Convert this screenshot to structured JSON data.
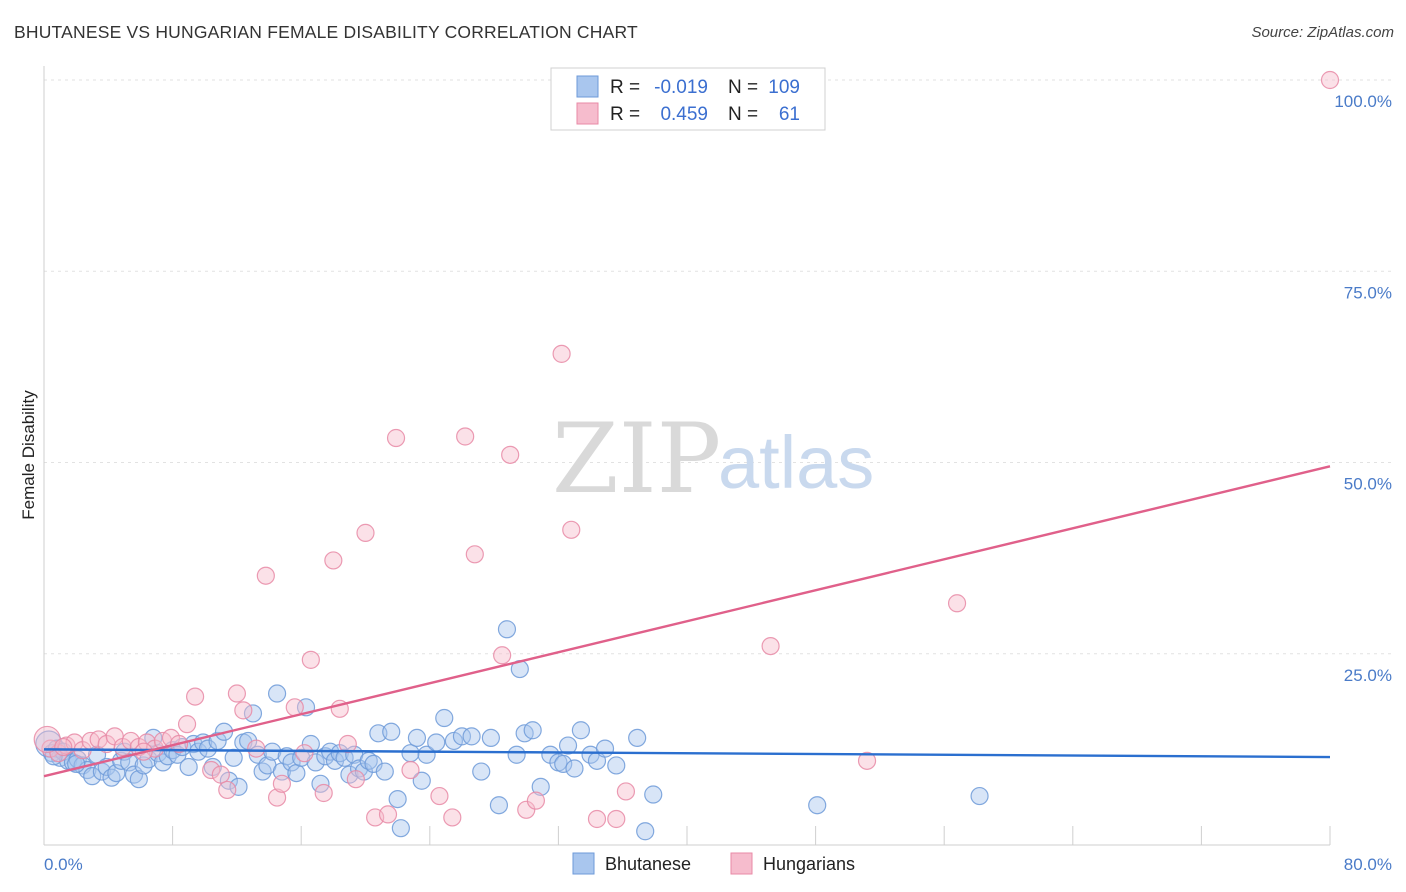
{
  "header": {
    "title": "BHUTANESE VS HUNGARIAN FEMALE DISABILITY CORRELATION CHART",
    "source": "Source: ZipAtlas.com"
  },
  "watermark": {
    "zip": "ZIP",
    "atlas": "atlas"
  },
  "legend": {
    "rows": [
      {
        "r_label": "R =",
        "r_value": "-0.019",
        "n_label": "N =",
        "n_value": "109",
        "color": "#a9c6ee",
        "stroke": "#6d9ad8"
      },
      {
        "r_label": "R =",
        "r_value": "0.459",
        "n_label": "N =",
        "n_value": "61",
        "color": "#f6bccd",
        "stroke": "#e88aa6"
      }
    ]
  },
  "bottom_legend": [
    {
      "label": "Bhutanese",
      "color": "#a9c6ee",
      "stroke": "#6d9ad8"
    },
    {
      "label": "Hungarians",
      "color": "#f6bccd",
      "stroke": "#e88aa6"
    }
  ],
  "chart_data": {
    "type": "scatter",
    "title": "BHUTANESE VS HUNGARIAN FEMALE DISABILITY CORRELATION CHART",
    "xlabel": "",
    "ylabel": "Female Disability",
    "xlim": [
      0,
      80
    ],
    "ylim": [
      0,
      100
    ],
    "x_tick_labels": [
      "0.0%",
      "80.0%"
    ],
    "y_tick_labels": [
      {
        "value": 25,
        "label": "25.0%"
      },
      {
        "value": 50,
        "label": "50.0%"
      },
      {
        "value": 75,
        "label": "75.0%"
      },
      {
        "value": 100,
        "label": "100.0%"
      }
    ],
    "series": [
      {
        "name": "Bhutanese",
        "color": "#a9c6ee",
        "line_color": "#2b6fcf",
        "trend": {
          "x": [
            0,
            80
          ],
          "y": [
            12.5,
            11.5
          ]
        },
        "points": [
          [
            0.3,
            13.2
          ],
          [
            0.5,
            12.0
          ],
          [
            0.8,
            12.6
          ],
          [
            1.0,
            11.4
          ],
          [
            1.2,
            12.2
          ],
          [
            1.5,
            11.0
          ],
          [
            1.8,
            10.8
          ],
          [
            2.1,
            11.2
          ],
          [
            2.4,
            10.4
          ],
          [
            2.7,
            9.8
          ],
          [
            3.0,
            9.0
          ],
          [
            3.3,
            11.8
          ],
          [
            3.6,
            9.6
          ],
          [
            3.9,
            10.2
          ],
          [
            4.2,
            8.8
          ],
          [
            4.5,
            9.4
          ],
          [
            4.8,
            11.0
          ],
          [
            5.0,
            12.2
          ],
          [
            5.3,
            10.8
          ],
          [
            5.6,
            9.2
          ],
          [
            5.9,
            8.6
          ],
          [
            6.2,
            10.4
          ],
          [
            6.5,
            11.2
          ],
          [
            6.8,
            14.0
          ],
          [
            7.1,
            12.0
          ],
          [
            7.4,
            10.8
          ],
          [
            7.7,
            11.6
          ],
          [
            8.0,
            12.4
          ],
          [
            8.3,
            11.8
          ],
          [
            8.6,
            12.8
          ],
          [
            9.0,
            10.2
          ],
          [
            9.3,
            13.2
          ],
          [
            9.6,
            12.2
          ],
          [
            9.9,
            13.4
          ],
          [
            10.2,
            12.6
          ],
          [
            10.5,
            10.2
          ],
          [
            10.8,
            13.6
          ],
          [
            11.2,
            14.8
          ],
          [
            11.5,
            8.4
          ],
          [
            11.8,
            11.4
          ],
          [
            12.1,
            7.6
          ],
          [
            12.4,
            13.4
          ],
          [
            12.7,
            13.6
          ],
          [
            13.0,
            17.2
          ],
          [
            13.3,
            11.8
          ],
          [
            13.6,
            9.6
          ],
          [
            13.9,
            10.4
          ],
          [
            14.2,
            12.2
          ],
          [
            14.5,
            19.8
          ],
          [
            14.8,
            9.6
          ],
          [
            15.1,
            11.6
          ],
          [
            15.4,
            10.8
          ],
          [
            15.7,
            9.4
          ],
          [
            16.0,
            11.4
          ],
          [
            16.3,
            18.0
          ],
          [
            16.6,
            13.2
          ],
          [
            16.9,
            10.8
          ],
          [
            17.2,
            8.0
          ],
          [
            17.5,
            11.6
          ],
          [
            17.8,
            12.2
          ],
          [
            18.1,
            11.0
          ],
          [
            18.4,
            12.0
          ],
          [
            18.7,
            11.4
          ],
          [
            19.0,
            9.2
          ],
          [
            19.3,
            11.8
          ],
          [
            19.6,
            10.0
          ],
          [
            19.9,
            9.6
          ],
          [
            20.2,
            11.0
          ],
          [
            20.5,
            10.6
          ],
          [
            20.8,
            14.6
          ],
          [
            21.2,
            9.6
          ],
          [
            21.6,
            14.8
          ],
          [
            22.0,
            6.0
          ],
          [
            22.2,
            2.2
          ],
          [
            22.8,
            12.0
          ],
          [
            23.2,
            14.0
          ],
          [
            23.5,
            8.4
          ],
          [
            23.8,
            11.8
          ],
          [
            24.4,
            13.4
          ],
          [
            24.9,
            16.6
          ],
          [
            25.5,
            13.6
          ],
          [
            26.0,
            14.2
          ],
          [
            26.6,
            14.2
          ],
          [
            27.2,
            9.6
          ],
          [
            27.8,
            14.0
          ],
          [
            28.3,
            5.2
          ],
          [
            28.8,
            28.2
          ],
          [
            29.4,
            11.8
          ],
          [
            29.6,
            23.0
          ],
          [
            29.9,
            14.6
          ],
          [
            30.4,
            15.0
          ],
          [
            30.9,
            7.6
          ],
          [
            31.5,
            11.8
          ],
          [
            32.0,
            10.8
          ],
          [
            32.3,
            10.6
          ],
          [
            32.6,
            13.0
          ],
          [
            33.0,
            10.0
          ],
          [
            33.4,
            15.0
          ],
          [
            34.0,
            11.8
          ],
          [
            34.4,
            11.0
          ],
          [
            34.9,
            12.6
          ],
          [
            35.6,
            10.4
          ],
          [
            36.9,
            14.0
          ],
          [
            37.4,
            1.8
          ],
          [
            37.9,
            6.6
          ],
          [
            48.1,
            5.2
          ],
          [
            58.2,
            6.4
          ],
          [
            0.6,
            11.6
          ],
          [
            2.0,
            10.6
          ]
        ]
      },
      {
        "name": "Hungarians",
        "color": "#f6bccd",
        "line_color": "#e0608a",
        "trend": {
          "x": [
            0,
            80
          ],
          "y": [
            9.0,
            49.5
          ]
        },
        "points": [
          [
            0.4,
            12.6
          ],
          [
            0.9,
            12.0
          ],
          [
            1.4,
            13.0
          ],
          [
            1.9,
            13.4
          ],
          [
            2.4,
            12.4
          ],
          [
            2.9,
            13.6
          ],
          [
            3.4,
            13.8
          ],
          [
            3.9,
            13.2
          ],
          [
            4.4,
            14.2
          ],
          [
            4.9,
            12.8
          ],
          [
            5.4,
            13.6
          ],
          [
            5.9,
            12.8
          ],
          [
            6.4,
            13.4
          ],
          [
            6.9,
            12.6
          ],
          [
            7.4,
            13.6
          ],
          [
            7.9,
            14.0
          ],
          [
            8.4,
            13.2
          ],
          [
            8.9,
            15.8
          ],
          [
            9.4,
            19.4
          ],
          [
            10.4,
            9.8
          ],
          [
            11.0,
            9.2
          ],
          [
            11.4,
            7.2
          ],
          [
            12.0,
            19.8
          ],
          [
            12.4,
            17.6
          ],
          [
            13.8,
            35.2
          ],
          [
            14.5,
            6.2
          ],
          [
            14.8,
            8.0
          ],
          [
            15.6,
            18.0
          ],
          [
            16.6,
            24.2
          ],
          [
            17.4,
            6.8
          ],
          [
            18.0,
            37.2
          ],
          [
            18.4,
            17.8
          ],
          [
            18.9,
            13.2
          ],
          [
            19.4,
            8.6
          ],
          [
            20.0,
            40.8
          ],
          [
            20.6,
            3.6
          ],
          [
            21.4,
            4.0
          ],
          [
            21.9,
            53.2
          ],
          [
            22.8,
            9.8
          ],
          [
            24.6,
            6.4
          ],
          [
            25.4,
            3.6
          ],
          [
            26.2,
            53.4
          ],
          [
            26.8,
            38.0
          ],
          [
            28.5,
            24.8
          ],
          [
            29.0,
            51.0
          ],
          [
            30.0,
            4.6
          ],
          [
            30.6,
            5.8
          ],
          [
            32.2,
            64.2
          ],
          [
            32.8,
            41.2
          ],
          [
            34.4,
            3.4
          ],
          [
            35.6,
            3.4
          ],
          [
            36.2,
            7.0
          ],
          [
            45.2,
            26.0
          ],
          [
            51.2,
            11.0
          ],
          [
            56.8,
            31.6
          ],
          [
            80.0,
            100.0
          ],
          [
            0.2,
            13.8
          ],
          [
            1.2,
            12.8
          ],
          [
            6.2,
            12.2
          ],
          [
            13.2,
            12.6
          ],
          [
            16.2,
            12.0
          ]
        ]
      }
    ]
  }
}
